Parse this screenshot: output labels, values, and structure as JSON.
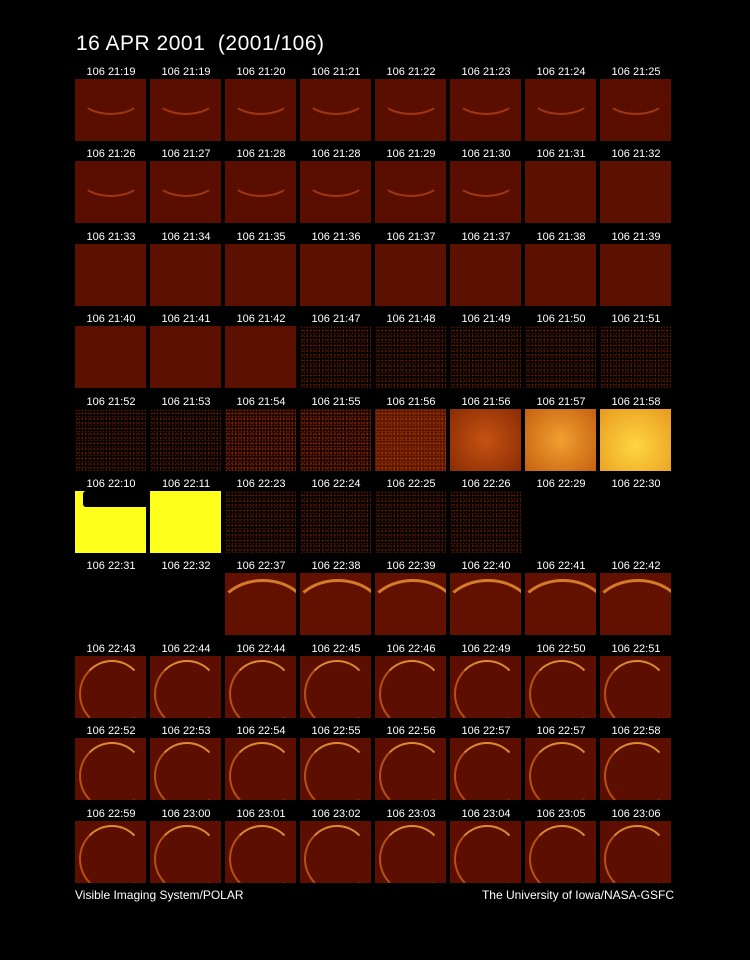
{
  "header": {
    "title": "16 APR 2001  (2001/106)"
  },
  "frames": [
    "106 21:19",
    "106 21:19",
    "106 21:20",
    "106 21:21",
    "106 21:22",
    "106 21:23",
    "106 21:24",
    "106 21:25",
    "106 21:26",
    "106 21:27",
    "106 21:28",
    "106 21:28",
    "106 21:29",
    "106 21:30",
    "106 21:31",
    "106 21:32",
    "106 21:33",
    "106 21:34",
    "106 21:35",
    "106 21:36",
    "106 21:37",
    "106 21:37",
    "106 21:38",
    "106 21:39",
    "106 21:40",
    "106 21:41",
    "106 21:42",
    "106 21:47",
    "106 21:48",
    "106 21:49",
    "106 21:50",
    "106 21:51",
    "106 21:52",
    "106 21:53",
    "106 21:54",
    "106 21:55",
    "106 21:56",
    "106 21:56",
    "106 21:57",
    "106 21:58",
    "106 22:10",
    "106 22:11",
    "106 22:23",
    "106 22:24",
    "106 22:25",
    "106 22:26",
    "106 22:29",
    "106 22:30",
    "106 22:31",
    "106 22:32",
    "106 22:37",
    "106 22:38",
    "106 22:39",
    "106 22:40",
    "106 22:41",
    "106 22:42",
    "106 22:43",
    "106 22:44",
    "106 22:44",
    "106 22:45",
    "106 22:46",
    "106 22:49",
    "106 22:50",
    "106 22:51",
    "106 22:52",
    "106 22:53",
    "106 22:54",
    "106 22:55",
    "106 22:56",
    "106 22:57",
    "106 22:57",
    "106 22:58",
    "106 22:59",
    "106 23:00",
    "106 23:01",
    "106 23:02",
    "106 23:03",
    "106 23:04",
    "106 23:05",
    "106 23:06"
  ],
  "footer": {
    "left": "Visible Imaging System/POLAR",
    "right": "The University of Iowa/NASA-GSFC"
  }
}
